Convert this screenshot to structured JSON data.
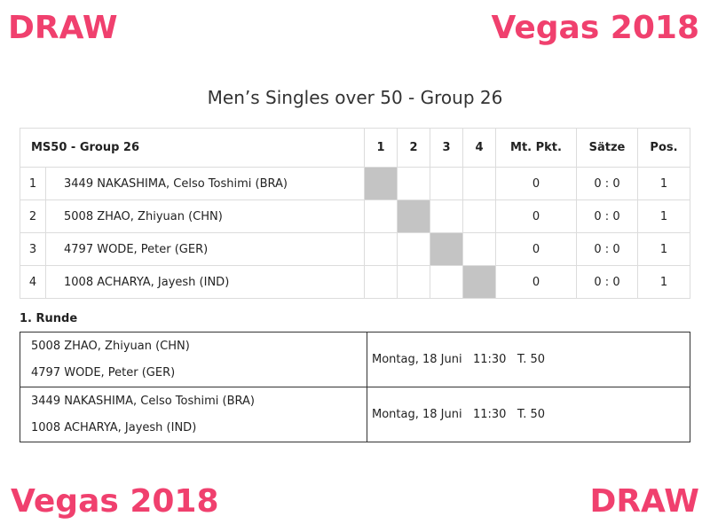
{
  "watermarks": {
    "top_left": "DRAW",
    "top_right": "Vegas 2018",
    "bottom_left": "Vegas 2018",
    "bottom_right": "DRAW",
    "color": "#f0406e"
  },
  "title": "Men’s Singles over 50 - Group 26",
  "group_table": {
    "group_name": "MS50 - Group 26",
    "columns": [
      "1",
      "2",
      "3",
      "4",
      "Mt. Pkt.",
      "Sätze",
      "Pos."
    ],
    "rows": [
      {
        "num": "1",
        "player": "3449 NAKASHIMA, Celso Toshimi (BRA)",
        "points": "0",
        "sets": "0 : 0",
        "pos": "1"
      },
      {
        "num": "2",
        "player": "5008 ZHAO, Zhiyuan (CHN)",
        "points": "0",
        "sets": "0 : 0",
        "pos": "1"
      },
      {
        "num": "3",
        "player": "4797 WODE, Peter (GER)",
        "points": "0",
        "sets": "0 : 0",
        "pos": "1"
      },
      {
        "num": "4",
        "player": "1008 ACHARYA, Jayesh (IND)",
        "points": "0",
        "sets": "0 : 0",
        "pos": "1"
      }
    ]
  },
  "round": {
    "label": "1. Runde",
    "matches": [
      {
        "player1": "5008 ZHAO, Zhiyuan (CHN)",
        "player2": "4797 WODE, Peter (GER)",
        "info": "Montag, 18 Juni   11:30   T. 50"
      },
      {
        "player1": "3449 NAKASHIMA, Celso Toshimi (BRA)",
        "player2": "1008 ACHARYA, Jayesh (IND)",
        "info": "Montag, 18 Juni   11:30   T. 50"
      }
    ]
  }
}
